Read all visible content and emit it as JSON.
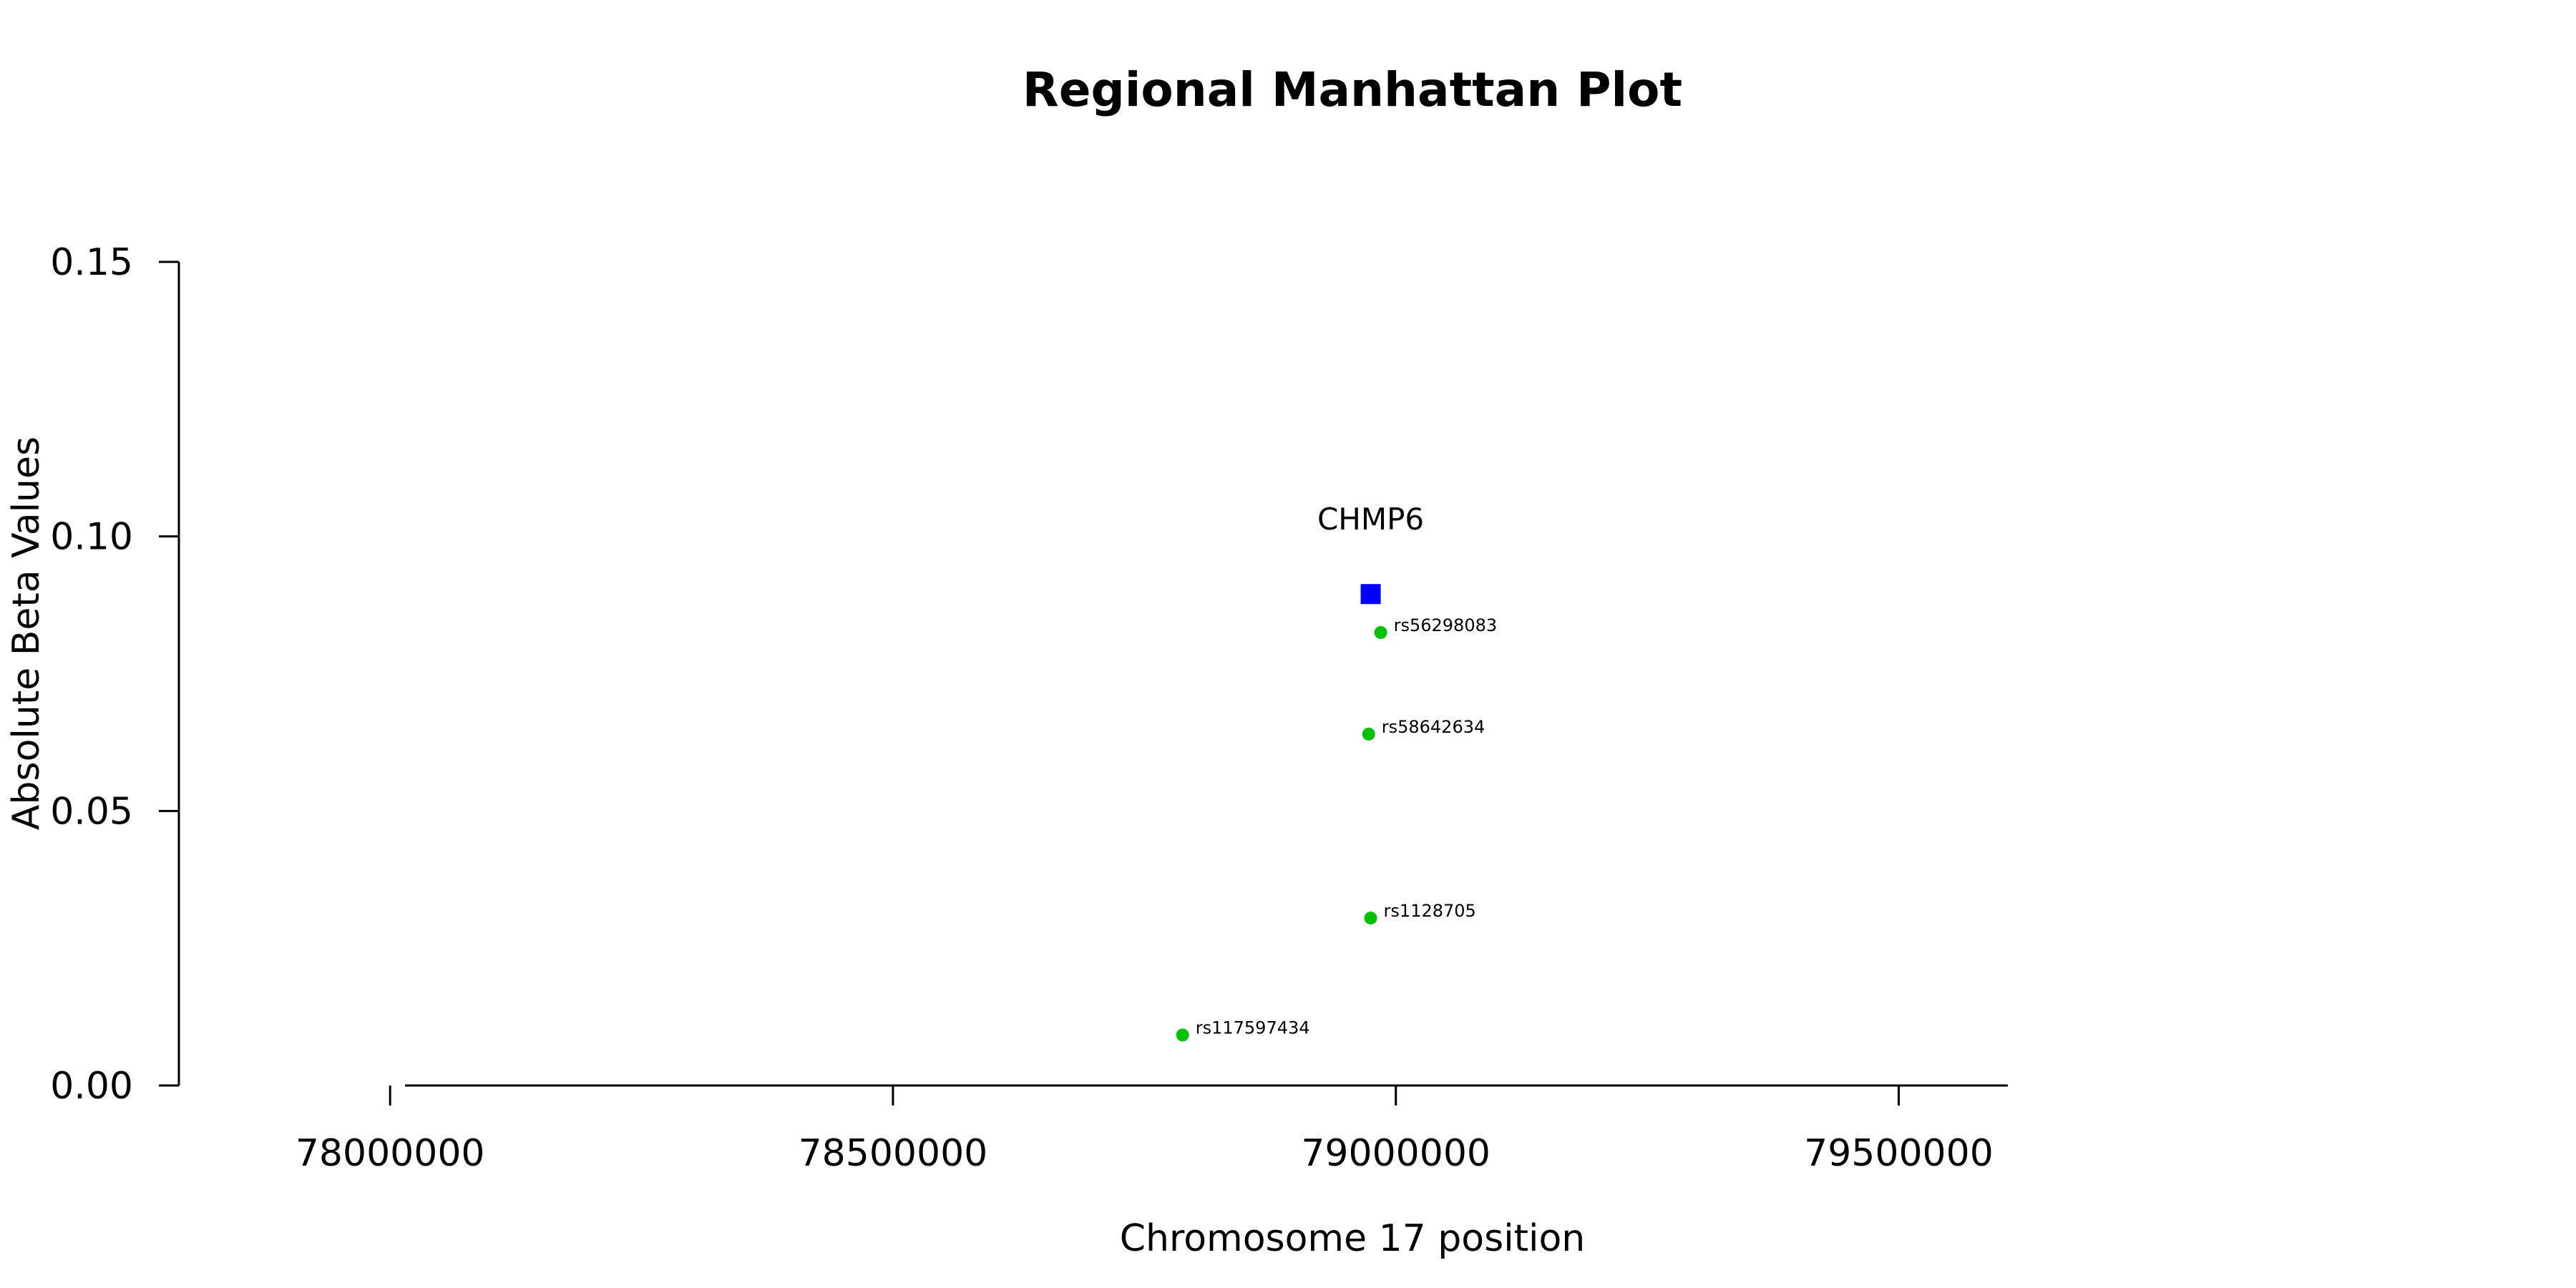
{
  "chart_data": {
    "type": "scatter",
    "title": "Regional Manhattan Plot",
    "xlabel": "Chromosome 17 position",
    "ylabel": "Absolute Beta Values",
    "xlim": [
      77790000,
      79960000
    ],
    "ylim": [
      0,
      0.15
    ],
    "x_ticks": [
      78000000,
      78500000,
      79000000,
      79500000
    ],
    "x_tick_labels": [
      "78000000",
      "78500000",
      "79000000",
      "79500000"
    ],
    "y_ticks": [
      0,
      0.05,
      0.1,
      0.15
    ],
    "y_tick_labels": [
      "0.00",
      "0.05",
      "0.10",
      "0.15"
    ],
    "grid": false,
    "genes": [
      {
        "label": "CHMP6",
        "x": 78975000,
        "y": 0.0895,
        "marker": "square",
        "color": "#0000ff"
      }
    ],
    "series": [
      {
        "marker": "circle",
        "color": "#00c000",
        "points": [
          {
            "label": "rs56298083",
            "x": 78985000,
            "y": 0.0825
          },
          {
            "label": "rs58642634",
            "x": 78973000,
            "y": 0.064
          },
          {
            "label": "rs1128705",
            "x": 78975000,
            "y": 0.0305
          },
          {
            "label": "rs117597434",
            "x": 78788000,
            "y": 0.0092
          }
        ]
      }
    ]
  }
}
